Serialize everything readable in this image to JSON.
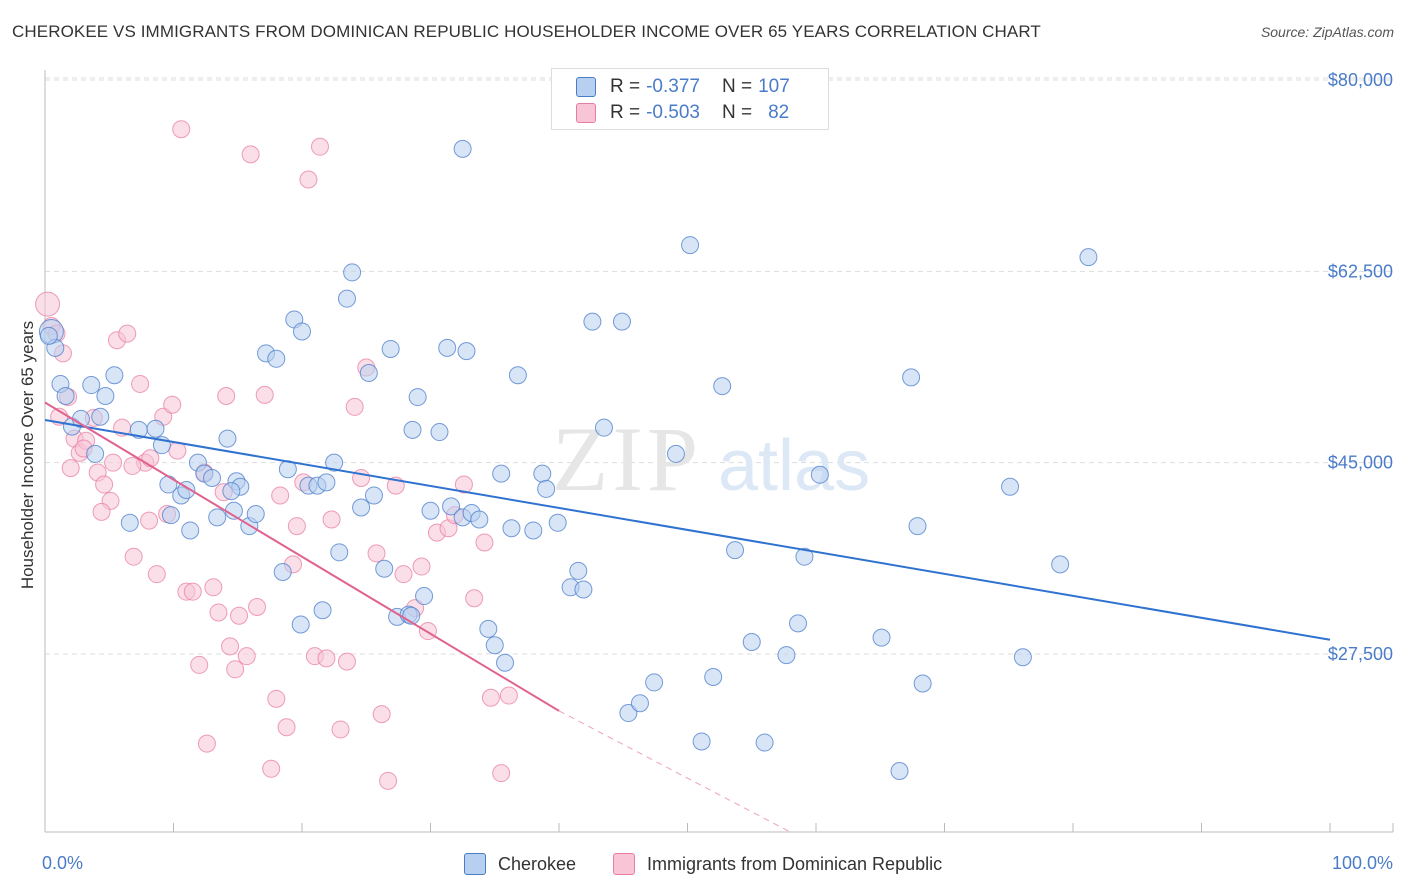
{
  "header": {
    "title": "CHEROKEE VS IMMIGRANTS FROM DOMINICAN REPUBLIC HOUSEHOLDER INCOME OVER 65 YEARS CORRELATION CHART",
    "source": "Source: ZipAtlas.com"
  },
  "legend": {
    "series": [
      {
        "r_label": "R = ",
        "r_value": "-0.377",
        "n_label": "N = ",
        "n_value": "107"
      },
      {
        "r_label": "R = ",
        "r_value": "-0.503",
        "n_label": "N = ",
        "n_value": "82"
      }
    ]
  },
  "colors": {
    "blue": "#4a7cc9",
    "blue_fill": "#b8d0f0",
    "blue_line": "#2f72d0",
    "pink": "#e87da3",
    "pink_fill": "#f7c5d6",
    "pink_line": "#e0628f"
  },
  "chart_data": {
    "type": "scatter",
    "title": "CHEROKEE VS IMMIGRANTS FROM DOMINICAN REPUBLIC HOUSEHOLDER INCOME OVER 65 YEARS CORRELATION CHART",
    "xlabel": "",
    "ylabel": "Householder Income Over 65 years",
    "xlim": [
      0,
      100
    ],
    "ylim": [
      11000,
      84000
    ],
    "x_tick_labels": [
      "0.0%",
      "100.0%"
    ],
    "y_ticks": [
      27500,
      45000,
      62500,
      80000
    ],
    "y_tick_labels": [
      "$27,500",
      "$45,000",
      "$62,500",
      "$80,000"
    ],
    "grid": true,
    "legend_position": "top-center",
    "watermark": "ZIPatlas",
    "series": [
      {
        "name": "Cherokee",
        "color": "#4a7cc9",
        "trend": {
          "x": [
            0,
            100
          ],
          "y": [
            48900,
            28800
          ]
        },
        "points": [
          [
            0.5,
            57000
          ],
          [
            0.8,
            55500
          ],
          [
            1.2,
            52200
          ],
          [
            1.6,
            51100
          ],
          [
            2.1,
            48300
          ],
          [
            2.8,
            49000
          ],
          [
            3.6,
            52100
          ],
          [
            4.3,
            49200
          ],
          [
            4.7,
            51100
          ],
          [
            5.4,
            53000
          ],
          [
            3.9,
            45800
          ],
          [
            7.3,
            48000
          ],
          [
            8.6,
            48100
          ],
          [
            9.1,
            46600
          ],
          [
            9.6,
            43000
          ],
          [
            9.8,
            40200
          ],
          [
            10.6,
            42000
          ],
          [
            11.0,
            42500
          ],
          [
            11.3,
            38800
          ],
          [
            11.9,
            45000
          ],
          [
            12.4,
            44000
          ],
          [
            13.0,
            43600
          ],
          [
            13.4,
            40000
          ],
          [
            14.2,
            47200
          ],
          [
            14.7,
            40600
          ],
          [
            14.9,
            43300
          ],
          [
            15.2,
            42800
          ],
          [
            15.9,
            39200
          ],
          [
            16.4,
            40300
          ],
          [
            17.2,
            55000
          ],
          [
            18.0,
            54500
          ],
          [
            18.5,
            35000
          ],
          [
            18.9,
            44400
          ],
          [
            19.4,
            58100
          ],
          [
            20.0,
            57000
          ],
          [
            19.9,
            30200
          ],
          [
            20.5,
            42900
          ],
          [
            21.2,
            42900
          ],
          [
            21.9,
            43200
          ],
          [
            21.6,
            31500
          ],
          [
            22.5,
            45000
          ],
          [
            22.9,
            36800
          ],
          [
            23.5,
            60000
          ],
          [
            23.9,
            62400
          ],
          [
            24.6,
            40900
          ],
          [
            25.2,
            53200
          ],
          [
            25.6,
            42000
          ],
          [
            26.4,
            35300
          ],
          [
            26.9,
            55400
          ],
          [
            27.4,
            30900
          ],
          [
            28.3,
            31100
          ],
          [
            28.6,
            48000
          ],
          [
            29.0,
            51000
          ],
          [
            29.5,
            32800
          ],
          [
            30.0,
            40600
          ],
          [
            30.7,
            47800
          ],
          [
            31.3,
            55500
          ],
          [
            31.6,
            41000
          ],
          [
            32.5,
            40000
          ],
          [
            32.8,
            55200
          ],
          [
            33.2,
            40400
          ],
          [
            33.8,
            39800
          ],
          [
            32.5,
            73700
          ],
          [
            34.5,
            29800
          ],
          [
            35.0,
            28300
          ],
          [
            35.5,
            44000
          ],
          [
            35.8,
            26700
          ],
          [
            36.8,
            53000
          ],
          [
            36.3,
            39000
          ],
          [
            38.0,
            38800
          ],
          [
            38.7,
            44000
          ],
          [
            39.0,
            42600
          ],
          [
            39.9,
            39500
          ],
          [
            40.9,
            33600
          ],
          [
            41.5,
            35100
          ],
          [
            41.9,
            33400
          ],
          [
            42.6,
            57900
          ],
          [
            43.5,
            48200
          ],
          [
            44.9,
            57900
          ],
          [
            45.4,
            22100
          ],
          [
            46.3,
            23000
          ],
          [
            47.4,
            24900
          ],
          [
            49.1,
            45800
          ],
          [
            50.2,
            64900
          ],
          [
            51.1,
            19500
          ],
          [
            52.0,
            25400
          ],
          [
            52.7,
            52000
          ],
          [
            53.7,
            37000
          ],
          [
            55.0,
            28600
          ],
          [
            56.0,
            19400
          ],
          [
            57.7,
            27400
          ],
          [
            58.6,
            30300
          ],
          [
            59.1,
            36400
          ],
          [
            60.3,
            43900
          ],
          [
            65.1,
            29000
          ],
          [
            66.5,
            16800
          ],
          [
            67.4,
            52800
          ],
          [
            67.9,
            39200
          ],
          [
            68.3,
            24800
          ],
          [
            75.1,
            42800
          ],
          [
            76.1,
            27200
          ],
          [
            79.0,
            35700
          ],
          [
            81.2,
            63800
          ],
          [
            0.3,
            56600
          ],
          [
            6.6,
            39500
          ],
          [
            14.5,
            42400
          ],
          [
            28.5,
            31000
          ]
        ]
      },
      {
        "name": "Immigrants from Dominican Republic",
        "color": "#e87da3",
        "trend": {
          "x": [
            0,
            40
          ],
          "y": [
            50500,
            22300
          ]
        },
        "trend_extension": {
          "x": [
            40,
            58
          ],
          "y": [
            22300,
            9600
          ]
        },
        "points": [
          [
            0.2,
            59500
          ],
          [
            0.5,
            57500
          ],
          [
            0.9,
            56800
          ],
          [
            1.4,
            55000
          ],
          [
            1.8,
            51000
          ],
          [
            2.3,
            47200
          ],
          [
            2.7,
            45900
          ],
          [
            3.2,
            47000
          ],
          [
            3.8,
            49100
          ],
          [
            4.1,
            44100
          ],
          [
            4.6,
            43000
          ],
          [
            5.1,
            41500
          ],
          [
            5.6,
            56200
          ],
          [
            6.0,
            48200
          ],
          [
            6.4,
            56800
          ],
          [
            6.9,
            36400
          ],
          [
            7.4,
            52200
          ],
          [
            7.8,
            45000
          ],
          [
            8.1,
            39700
          ],
          [
            8.7,
            34800
          ],
          [
            9.2,
            49200
          ],
          [
            9.5,
            40300
          ],
          [
            9.9,
            50300
          ],
          [
            10.3,
            46100
          ],
          [
            10.6,
            75500
          ],
          [
            11.0,
            33200
          ],
          [
            11.5,
            33200
          ],
          [
            12.0,
            26500
          ],
          [
            12.4,
            44100
          ],
          [
            12.6,
            19300
          ],
          [
            13.1,
            33600
          ],
          [
            13.5,
            31300
          ],
          [
            13.9,
            42300
          ],
          [
            14.1,
            51100
          ],
          [
            14.4,
            28200
          ],
          [
            14.8,
            26100
          ],
          [
            15.1,
            31000
          ],
          [
            15.7,
            27300
          ],
          [
            16.0,
            73200
          ],
          [
            16.5,
            31800
          ],
          [
            17.1,
            51200
          ],
          [
            17.6,
            17000
          ],
          [
            18.0,
            23400
          ],
          [
            18.3,
            42000
          ],
          [
            18.8,
            20800
          ],
          [
            19.3,
            35700
          ],
          [
            19.6,
            39200
          ],
          [
            20.1,
            43200
          ],
          [
            20.5,
            70900
          ],
          [
            21.0,
            27300
          ],
          [
            21.4,
            73900
          ],
          [
            21.9,
            27100
          ],
          [
            22.3,
            39800
          ],
          [
            23.0,
            20600
          ],
          [
            23.5,
            26800
          ],
          [
            24.1,
            50100
          ],
          [
            24.6,
            43600
          ],
          [
            25.0,
            53700
          ],
          [
            25.8,
            36700
          ],
          [
            26.2,
            22000
          ],
          [
            26.7,
            15900
          ],
          [
            27.3,
            42900
          ],
          [
            27.9,
            34800
          ],
          [
            28.8,
            31700
          ],
          [
            29.3,
            35500
          ],
          [
            29.8,
            29600
          ],
          [
            30.5,
            38600
          ],
          [
            31.4,
            39000
          ],
          [
            31.9,
            40200
          ],
          [
            32.6,
            43000
          ],
          [
            33.4,
            32600
          ],
          [
            34.2,
            37700
          ],
          [
            34.7,
            23500
          ],
          [
            35.5,
            16600
          ],
          [
            36.1,
            23700
          ],
          [
            5.3,
            45000
          ],
          [
            2.0,
            44500
          ],
          [
            3.0,
            46300
          ],
          [
            4.4,
            40500
          ],
          [
            1.1,
            49200
          ],
          [
            6.8,
            44700
          ],
          [
            8.2,
            45400
          ]
        ]
      }
    ]
  },
  "axes": {
    "x_left_label": "0.0%",
    "x_right_label": "100.0%",
    "y_axis_label": "Householder Income Over 65 years"
  },
  "bottom_legend": {
    "items": [
      {
        "label": "Cherokee"
      },
      {
        "label": "Immigrants from Dominican Republic"
      }
    ]
  }
}
